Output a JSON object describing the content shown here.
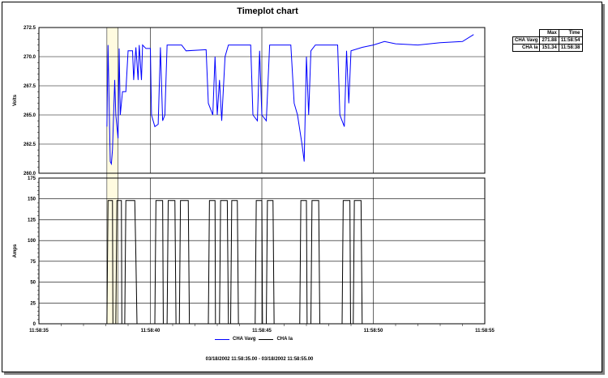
{
  "chart_data": {
    "type": "line",
    "title": "Timeplot chart",
    "x_unit": "seconds after 11:58:35",
    "xlim": [
      0,
      20
    ],
    "x_ticks": [
      "11:58:35",
      "11:58:40",
      "11:58:45",
      "11:58:50",
      "11:58:55"
    ],
    "highlight_range": [
      38.05,
      38.55
    ],
    "panels": [
      {
        "ylabel": "Volts",
        "ylim": [
          260,
          272.5
        ],
        "y_ticks": [
          "272.5",
          "270.0",
          "267.5",
          "265.0",
          "262.5",
          "260.0"
        ],
        "series": [
          {
            "name": "CHA Vavg",
            "color": "#0000ff",
            "points": [
              [
                3.05,
                264
              ],
              [
                3.1,
                271
              ],
              [
                3.15,
                266
              ],
              [
                3.2,
                261
              ],
              [
                3.25,
                260.8
              ],
              [
                3.3,
                262
              ],
              [
                3.4,
                268
              ],
              [
                3.45,
                265
              ],
              [
                3.55,
                263
              ],
              [
                3.6,
                270.7
              ],
              [
                3.65,
                265
              ],
              [
                3.75,
                267
              ],
              [
                3.9,
                267
              ],
              [
                4.0,
                270.5
              ],
              [
                4.2,
                270.5
              ],
              [
                4.25,
                268
              ],
              [
                4.35,
                270.8
              ],
              [
                4.45,
                268
              ],
              [
                4.5,
                271
              ],
              [
                4.6,
                268
              ],
              [
                4.65,
                271
              ],
              [
                4.8,
                270.7
              ],
              [
                5.0,
                270.7
              ],
              [
                5.05,
                265
              ],
              [
                5.2,
                264
              ],
              [
                5.35,
                264.2
              ],
              [
                5.45,
                270.8
              ],
              [
                5.55,
                264.5
              ],
              [
                5.65,
                265
              ],
              [
                5.75,
                271
              ],
              [
                6.4,
                271
              ],
              [
                6.6,
                270.5
              ],
              [
                7.5,
                270.6
              ],
              [
                7.6,
                266
              ],
              [
                7.8,
                265
              ],
              [
                7.9,
                270
              ],
              [
                8.0,
                265
              ],
              [
                8.1,
                268
              ],
              [
                8.2,
                264.5
              ],
              [
                8.35,
                270
              ],
              [
                8.5,
                271
              ],
              [
                9.5,
                271
              ],
              [
                9.6,
                265
              ],
              [
                9.8,
                264.5
              ],
              [
                9.9,
                270.5
              ],
              [
                10.0,
                265
              ],
              [
                10.2,
                264.5
              ],
              [
                10.35,
                271
              ],
              [
                11.3,
                271
              ],
              [
                11.45,
                266
              ],
              [
                11.6,
                265
              ],
              [
                11.8,
                262.5
              ],
              [
                11.9,
                261
              ],
              [
                12.0,
                270
              ],
              [
                12.1,
                265
              ],
              [
                12.2,
                270.5
              ],
              [
                12.4,
                271
              ],
              [
                13.4,
                271
              ],
              [
                13.5,
                265
              ],
              [
                13.7,
                264
              ],
              [
                13.8,
                270.5
              ],
              [
                13.9,
                266
              ],
              [
                14.0,
                270.5
              ],
              [
                14.5,
                270.8
              ],
              [
                15.0,
                271
              ],
              [
                15.5,
                271.3
              ],
              [
                16.0,
                271.1
              ],
              [
                17.0,
                271.0
              ],
              [
                18.0,
                271.2
              ],
              [
                19.0,
                271.3
              ],
              [
                19.5,
                271.9
              ]
            ]
          }
        ]
      },
      {
        "ylabel": "Amps",
        "ylim": [
          0,
          175
        ],
        "y_ticks": [
          "175",
          "150",
          "125",
          "100",
          "75",
          "50",
          "25",
          "0"
        ],
        "series": [
          {
            "name": "CHA Ia",
            "color": "#000000",
            "points": [
              [
                0,
                0
              ],
              [
                3.05,
                0
              ],
              [
                3.1,
                148
              ],
              [
                3.3,
                148
              ],
              [
                3.32,
                0
              ],
              [
                3.45,
                0
              ],
              [
                3.5,
                148
              ],
              [
                3.7,
                148
              ],
              [
                3.72,
                0
              ],
              [
                3.85,
                0
              ],
              [
                3.9,
                148
              ],
              [
                4.3,
                148
              ],
              [
                4.35,
                80
              ],
              [
                4.4,
                0
              ],
              [
                5.2,
                0
              ],
              [
                5.25,
                148
              ],
              [
                5.55,
                148
              ],
              [
                5.58,
                0
              ],
              [
                5.75,
                0
              ],
              [
                5.8,
                148
              ],
              [
                6.1,
                148
              ],
              [
                6.15,
                0
              ],
              [
                6.3,
                0
              ],
              [
                6.35,
                148
              ],
              [
                6.7,
                148
              ],
              [
                6.75,
                0
              ],
              [
                7.6,
                0
              ],
              [
                7.65,
                148
              ],
              [
                7.9,
                148
              ],
              [
                7.92,
                0
              ],
              [
                8.1,
                0
              ],
              [
                8.15,
                148
              ],
              [
                8.45,
                148
              ],
              [
                8.5,
                0
              ],
              [
                8.6,
                0
              ],
              [
                8.65,
                148
              ],
              [
                8.9,
                148
              ],
              [
                8.95,
                0
              ],
              [
                9.7,
                0
              ],
              [
                9.75,
                148
              ],
              [
                10.0,
                148
              ],
              [
                10.03,
                0
              ],
              [
                10.2,
                0
              ],
              [
                10.25,
                148
              ],
              [
                10.5,
                148
              ],
              [
                10.55,
                0
              ],
              [
                11.7,
                0
              ],
              [
                11.75,
                148
              ],
              [
                12.0,
                148
              ],
              [
                12.03,
                0
              ],
              [
                12.2,
                0
              ],
              [
                12.25,
                148
              ],
              [
                12.55,
                148
              ],
              [
                12.6,
                0
              ],
              [
                13.6,
                0
              ],
              [
                13.65,
                148
              ],
              [
                13.95,
                148
              ],
              [
                13.98,
                0
              ],
              [
                14.1,
                0
              ],
              [
                14.15,
                148
              ],
              [
                14.45,
                148
              ],
              [
                14.5,
                0
              ],
              [
                20,
                0
              ]
            ]
          }
        ]
      }
    ],
    "legend": [
      "CHA Vavg",
      "CHA Ia"
    ],
    "legend_position": "bottom",
    "stats_table": {
      "headers": [
        "Max",
        "Time"
      ],
      "rows": [
        [
          "CHA Vavg",
          "271.88",
          "11:58:54"
        ],
        [
          "CHA Ia",
          "151.34",
          "11:58:38"
        ]
      ]
    },
    "footer": "03/18/2002 11:58:35.00 - 03/18/2002 11:58:55.00"
  }
}
